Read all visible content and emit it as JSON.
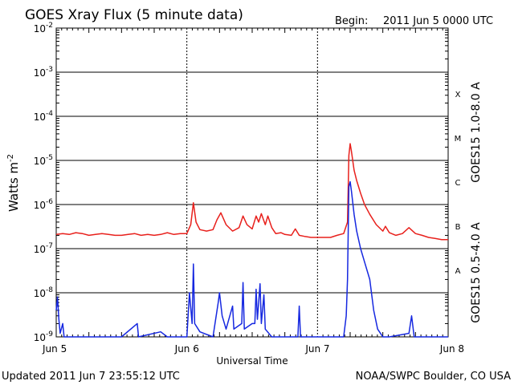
{
  "header": {
    "title": "GOES Xray Flux (5 minute data)",
    "begin_label": "Begin:",
    "begin_value": "2011 Jun 5 0000 UTC"
  },
  "footer": {
    "updated": "Updated 2011 Jun  7 23:55:12 UTC",
    "credit": "NOAA/SWPC Boulder, CO USA"
  },
  "colors": {
    "long_channel": "#e8201c",
    "short_channel": "#1628e0",
    "frame": "#000000",
    "background": "#ffffff"
  },
  "chart_data": {
    "type": "line",
    "title": "GOES Xray Flux (5 minute data)",
    "xlabel": "Universal Time",
    "ylabel": "Watts m",
    "ylabel_superscript": "-2",
    "yscale": "log",
    "ylim": [
      1e-09,
      0.01
    ],
    "xlim_days": [
      0,
      3
    ],
    "x_ticks": [
      {
        "day": 0,
        "label": "Jun 5"
      },
      {
        "day": 1,
        "label": "Jun 6"
      },
      {
        "day": 2,
        "label": "Jun 7"
      },
      {
        "day": 3,
        "label": "Jun 8"
      }
    ],
    "y_ticks": [
      {
        "value": 1e-09,
        "base": "10",
        "exp": "-9"
      },
      {
        "value": 1e-08,
        "base": "10",
        "exp": "-8"
      },
      {
        "value": 1e-07,
        "base": "10",
        "exp": "-7"
      },
      {
        "value": 1e-06,
        "base": "10",
        "exp": "-6"
      },
      {
        "value": 1e-05,
        "base": "10",
        "exp": "-5"
      },
      {
        "value": 0.0001,
        "base": "10",
        "exp": "-4"
      },
      {
        "value": 0.001,
        "base": "10",
        "exp": "-3"
      },
      {
        "value": 0.01,
        "base": "10",
        "exp": "-2"
      }
    ],
    "flare_classes": [
      {
        "label": "A",
        "value": 3.2e-08
      },
      {
        "label": "B",
        "value": 3.2e-07
      },
      {
        "label": "C",
        "value": 3.2e-06
      },
      {
        "label": "M",
        "value": 3.2e-05
      },
      {
        "label": "X",
        "value": 0.00032
      }
    ],
    "grid": "horizontal lines at each decade; dotted verticals at day boundaries",
    "legend": "right side, rotated",
    "series": [
      {
        "name": "GOES15 1.0-8.0 A",
        "color": "#e8201c",
        "points": [
          [
            0.0,
            2.1e-07
          ],
          [
            0.05,
            2.2e-07
          ],
          [
            0.1,
            2.1e-07
          ],
          [
            0.15,
            2.3e-07
          ],
          [
            0.2,
            2.2e-07
          ],
          [
            0.25,
            2e-07
          ],
          [
            0.3,
            2.1e-07
          ],
          [
            0.35,
            2.2e-07
          ],
          [
            0.4,
            2.1e-07
          ],
          [
            0.45,
            2e-07
          ],
          [
            0.5,
            2e-07
          ],
          [
            0.55,
            2.1e-07
          ],
          [
            0.6,
            2.2e-07
          ],
          [
            0.65,
            2e-07
          ],
          [
            0.7,
            2.1e-07
          ],
          [
            0.75,
            2e-07
          ],
          [
            0.8,
            2.1e-07
          ],
          [
            0.85,
            2.3e-07
          ],
          [
            0.9,
            2.1e-07
          ],
          [
            0.95,
            2.2e-07
          ],
          [
            1.0,
            2.2e-07
          ],
          [
            1.03,
            3.5e-07
          ],
          [
            1.05,
            1.1e-06
          ],
          [
            1.07,
            4e-07
          ],
          [
            1.1,
            2.7e-07
          ],
          [
            1.15,
            2.5e-07
          ],
          [
            1.2,
            2.7e-07
          ],
          [
            1.23,
            4.5e-07
          ],
          [
            1.26,
            6.5e-07
          ],
          [
            1.3,
            3.5e-07
          ],
          [
            1.35,
            2.5e-07
          ],
          [
            1.4,
            3e-07
          ],
          [
            1.43,
            5.5e-07
          ],
          [
            1.46,
            3.5e-07
          ],
          [
            1.5,
            2.8e-07
          ],
          [
            1.53,
            5.5e-07
          ],
          [
            1.55,
            4e-07
          ],
          [
            1.57,
            6.2e-07
          ],
          [
            1.6,
            3.5e-07
          ],
          [
            1.62,
            5.5e-07
          ],
          [
            1.65,
            3e-07
          ],
          [
            1.68,
            2.2e-07
          ],
          [
            1.72,
            2.3e-07
          ],
          [
            1.75,
            2.1e-07
          ],
          [
            1.8,
            2e-07
          ],
          [
            1.83,
            2.8e-07
          ],
          [
            1.86,
            2e-07
          ],
          [
            1.9,
            1.9e-07
          ],
          [
            1.95,
            1.8e-07
          ],
          [
            2.0,
            1.8e-07
          ],
          [
            2.05,
            1.8e-07
          ],
          [
            2.1,
            1.8e-07
          ],
          [
            2.15,
            2e-07
          ],
          [
            2.2,
            2.2e-07
          ],
          [
            2.23,
            4e-07
          ],
          [
            2.24,
            1.3e-05
          ],
          [
            2.25,
            2.4e-05
          ],
          [
            2.26,
            1.6e-05
          ],
          [
            2.28,
            6e-06
          ],
          [
            2.3,
            3.5e-06
          ],
          [
            2.33,
            1.8e-06
          ],
          [
            2.36,
            1e-06
          ],
          [
            2.4,
            6e-07
          ],
          [
            2.45,
            3.5e-07
          ],
          [
            2.5,
            2.5e-07
          ],
          [
            2.52,
            3.2e-07
          ],
          [
            2.55,
            2.3e-07
          ],
          [
            2.6,
            2e-07
          ],
          [
            2.65,
            2.2e-07
          ],
          [
            2.7,
            3e-07
          ],
          [
            2.75,
            2.2e-07
          ],
          [
            2.8,
            2e-07
          ],
          [
            2.85,
            1.8e-07
          ],
          [
            2.9,
            1.7e-07
          ],
          [
            2.95,
            1.6e-07
          ],
          [
            3.0,
            1.6e-07
          ]
        ]
      },
      {
        "name": "GOES15 0.5-4.0 A",
        "color": "#1628e0",
        "points": [
          [
            0.0,
            4e-09
          ],
          [
            0.01,
            8e-09
          ],
          [
            0.02,
            2.5e-09
          ],
          [
            0.03,
            1.2e-09
          ],
          [
            0.05,
            2e-09
          ],
          [
            0.06,
            1e-09
          ],
          [
            0.2,
            1e-09
          ],
          [
            0.5,
            1e-09
          ],
          [
            0.62,
            2e-09
          ],
          [
            0.63,
            1e-09
          ],
          [
            0.8,
            1.3e-09
          ],
          [
            0.85,
            1e-09
          ],
          [
            1.0,
            1e-09
          ],
          [
            1.02,
            1e-08
          ],
          [
            1.04,
            2e-09
          ],
          [
            1.05,
            4.5e-08
          ],
          [
            1.06,
            2e-09
          ],
          [
            1.1,
            1.3e-09
          ],
          [
            1.2,
            1e-09
          ],
          [
            1.24,
            6e-09
          ],
          [
            1.25,
            1e-08
          ],
          [
            1.27,
            3e-09
          ],
          [
            1.3,
            1.5e-09
          ],
          [
            1.35,
            5e-09
          ],
          [
            1.36,
            1.5e-09
          ],
          [
            1.42,
            2e-09
          ],
          [
            1.43,
            1.7e-08
          ],
          [
            1.44,
            1.5e-09
          ],
          [
            1.5,
            2e-09
          ],
          [
            1.52,
            2e-09
          ],
          [
            1.53,
            1.2e-08
          ],
          [
            1.54,
            2.5e-09
          ],
          [
            1.56,
            1.6e-08
          ],
          [
            1.57,
            2e-09
          ],
          [
            1.59,
            9e-09
          ],
          [
            1.6,
            1.5e-09
          ],
          [
            1.65,
            1e-09
          ],
          [
            1.85,
            1e-09
          ],
          [
            1.86,
            5e-09
          ],
          [
            1.87,
            1e-09
          ],
          [
            2.0,
            1e-09
          ],
          [
            2.2,
            1e-09
          ],
          [
            2.22,
            3e-09
          ],
          [
            2.23,
            2e-08
          ],
          [
            2.24,
            2.5e-06
          ],
          [
            2.25,
            3.3e-06
          ],
          [
            2.26,
            2e-06
          ],
          [
            2.28,
            6e-07
          ],
          [
            2.3,
            2.5e-07
          ],
          [
            2.33,
            1e-07
          ],
          [
            2.36,
            5e-08
          ],
          [
            2.4,
            2e-08
          ],
          [
            2.43,
            4e-09
          ],
          [
            2.46,
            1.5e-09
          ],
          [
            2.5,
            1e-09
          ],
          [
            2.55,
            1e-09
          ],
          [
            2.7,
            1.2e-09
          ],
          [
            2.72,
            3e-09
          ],
          [
            2.74,
            1e-09
          ],
          [
            2.9,
            1e-09
          ],
          [
            3.0,
            1e-09
          ]
        ]
      }
    ]
  }
}
